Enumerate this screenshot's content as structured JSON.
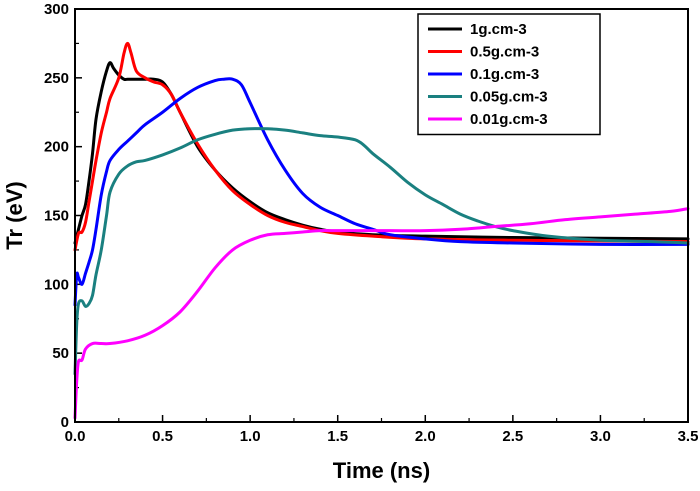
{
  "chart_data": {
    "type": "line",
    "xlabel": "Time (ns)",
    "ylabel": "Tr (eV)",
    "xlim": [
      0,
      3.5
    ],
    "ylim": [
      0,
      300
    ],
    "x_ticks": [
      "0.0",
      "0.5",
      "1.0",
      "1.5",
      "2.0",
      "2.5",
      "3.0",
      "3.5"
    ],
    "y_ticks": [
      "0",
      "50",
      "100",
      "150",
      "200",
      "250",
      "300"
    ],
    "grid": false,
    "legend_position": "top-right",
    "series": [
      {
        "name": "1g.cm-3",
        "color": "#000000",
        "points": [
          [
            0,
            130
          ],
          [
            0.02,
            140
          ],
          [
            0.04,
            150
          ],
          [
            0.06,
            158
          ],
          [
            0.08,
            175
          ],
          [
            0.1,
            195
          ],
          [
            0.12,
            220
          ],
          [
            0.15,
            240
          ],
          [
            0.18,
            255
          ],
          [
            0.2,
            261
          ],
          [
            0.22,
            257
          ],
          [
            0.25,
            252
          ],
          [
            0.28,
            249
          ],
          [
            0.3,
            249
          ],
          [
            0.35,
            249
          ],
          [
            0.4,
            249
          ],
          [
            0.45,
            249
          ],
          [
            0.5,
            247
          ],
          [
            0.55,
            238
          ],
          [
            0.6,
            225
          ],
          [
            0.7,
            200
          ],
          [
            0.8,
            183
          ],
          [
            0.9,
            170
          ],
          [
            1.0,
            160
          ],
          [
            1.1,
            152
          ],
          [
            1.2,
            147
          ],
          [
            1.3,
            143
          ],
          [
            1.4,
            140
          ],
          [
            1.5,
            138
          ],
          [
            1.7,
            136
          ],
          [
            2.0,
            135
          ],
          [
            2.5,
            134
          ],
          [
            3.0,
            133.5
          ],
          [
            3.5,
            133
          ]
        ]
      },
      {
        "name": "0.5g.cm-3",
        "color": "#ff0000",
        "points": [
          [
            0,
            125
          ],
          [
            0.02,
            137
          ],
          [
            0.04,
            138
          ],
          [
            0.06,
            145
          ],
          [
            0.08,
            160
          ],
          [
            0.1,
            175
          ],
          [
            0.12,
            190
          ],
          [
            0.15,
            210
          ],
          [
            0.18,
            225
          ],
          [
            0.2,
            235
          ],
          [
            0.25,
            250
          ],
          [
            0.28,
            268
          ],
          [
            0.3,
            275
          ],
          [
            0.32,
            268
          ],
          [
            0.35,
            255
          ],
          [
            0.4,
            250
          ],
          [
            0.45,
            247
          ],
          [
            0.5,
            245
          ],
          [
            0.55,
            238
          ],
          [
            0.6,
            225
          ],
          [
            0.7,
            202
          ],
          [
            0.8,
            183
          ],
          [
            0.9,
            168
          ],
          [
            1.0,
            158
          ],
          [
            1.1,
            150
          ],
          [
            1.2,
            145
          ],
          [
            1.3,
            142
          ],
          [
            1.4,
            139
          ],
          [
            1.5,
            137
          ],
          [
            1.7,
            135
          ],
          [
            2.0,
            133
          ],
          [
            2.5,
            132
          ],
          [
            3.0,
            131.5
          ],
          [
            3.5,
            131
          ]
        ]
      },
      {
        "name": "0.1g.cm-3",
        "color": "#0000ff",
        "points": [
          [
            0,
            85
          ],
          [
            0.01,
            107
          ],
          [
            0.02,
            105
          ],
          [
            0.04,
            100
          ],
          [
            0.06,
            108
          ],
          [
            0.08,
            116
          ],
          [
            0.1,
            125
          ],
          [
            0.12,
            140
          ],
          [
            0.15,
            165
          ],
          [
            0.18,
            182
          ],
          [
            0.2,
            190
          ],
          [
            0.25,
            198
          ],
          [
            0.3,
            204
          ],
          [
            0.35,
            210
          ],
          [
            0.4,
            216
          ],
          [
            0.5,
            225
          ],
          [
            0.6,
            235
          ],
          [
            0.7,
            243
          ],
          [
            0.8,
            248
          ],
          [
            0.85,
            249
          ],
          [
            0.9,
            249
          ],
          [
            0.95,
            245
          ],
          [
            1.0,
            232
          ],
          [
            1.1,
            205
          ],
          [
            1.2,
            183
          ],
          [
            1.3,
            166
          ],
          [
            1.4,
            156
          ],
          [
            1.5,
            150
          ],
          [
            1.6,
            144
          ],
          [
            1.7,
            140
          ],
          [
            1.8,
            136
          ],
          [
            2.0,
            133
          ],
          [
            2.2,
            131
          ],
          [
            2.5,
            130
          ],
          [
            3.0,
            129
          ],
          [
            3.5,
            129
          ]
        ]
      },
      {
        "name": "0.05g.cm-3",
        "color": "#1a8080",
        "points": [
          [
            0,
            35
          ],
          [
            0.01,
            72
          ],
          [
            0.02,
            86
          ],
          [
            0.04,
            88
          ],
          [
            0.06,
            84
          ],
          [
            0.08,
            86
          ],
          [
            0.1,
            92
          ],
          [
            0.12,
            107
          ],
          [
            0.15,
            125
          ],
          [
            0.18,
            150
          ],
          [
            0.2,
            167
          ],
          [
            0.25,
            180
          ],
          [
            0.3,
            186
          ],
          [
            0.35,
            189
          ],
          [
            0.4,
            190
          ],
          [
            0.5,
            194
          ],
          [
            0.6,
            199
          ],
          [
            0.7,
            205
          ],
          [
            0.8,
            209
          ],
          [
            0.9,
            212
          ],
          [
            1.0,
            213
          ],
          [
            1.1,
            213
          ],
          [
            1.2,
            212
          ],
          [
            1.3,
            210
          ],
          [
            1.4,
            208
          ],
          [
            1.5,
            207
          ],
          [
            1.6,
            205
          ],
          [
            1.65,
            201
          ],
          [
            1.7,
            195
          ],
          [
            1.8,
            185
          ],
          [
            1.9,
            174
          ],
          [
            2.0,
            165
          ],
          [
            2.1,
            158
          ],
          [
            2.2,
            151
          ],
          [
            2.3,
            146
          ],
          [
            2.4,
            142
          ],
          [
            2.5,
            139
          ],
          [
            2.7,
            135
          ],
          [
            3.0,
            132
          ],
          [
            3.3,
            131
          ],
          [
            3.5,
            130
          ]
        ]
      },
      {
        "name": "0.01g.cm-3",
        "color": "#ff00ff",
        "points": [
          [
            0,
            3
          ],
          [
            0.01,
            30
          ],
          [
            0.02,
            44
          ],
          [
            0.04,
            45
          ],
          [
            0.06,
            53
          ],
          [
            0.1,
            57
          ],
          [
            0.15,
            57
          ],
          [
            0.2,
            57
          ],
          [
            0.3,
            59
          ],
          [
            0.4,
            63
          ],
          [
            0.5,
            70
          ],
          [
            0.6,
            80
          ],
          [
            0.7,
            95
          ],
          [
            0.8,
            112
          ],
          [
            0.9,
            125
          ],
          [
            1.0,
            132
          ],
          [
            1.1,
            136
          ],
          [
            1.2,
            137
          ],
          [
            1.3,
            138
          ],
          [
            1.4,
            139
          ],
          [
            1.5,
            139
          ],
          [
            1.6,
            139
          ],
          [
            1.8,
            139
          ],
          [
            2.0,
            139
          ],
          [
            2.2,
            140
          ],
          [
            2.4,
            142
          ],
          [
            2.6,
            144
          ],
          [
            2.8,
            147
          ],
          [
            3.0,
            149
          ],
          [
            3.2,
            151
          ],
          [
            3.4,
            153
          ],
          [
            3.5,
            155
          ]
        ]
      }
    ]
  }
}
